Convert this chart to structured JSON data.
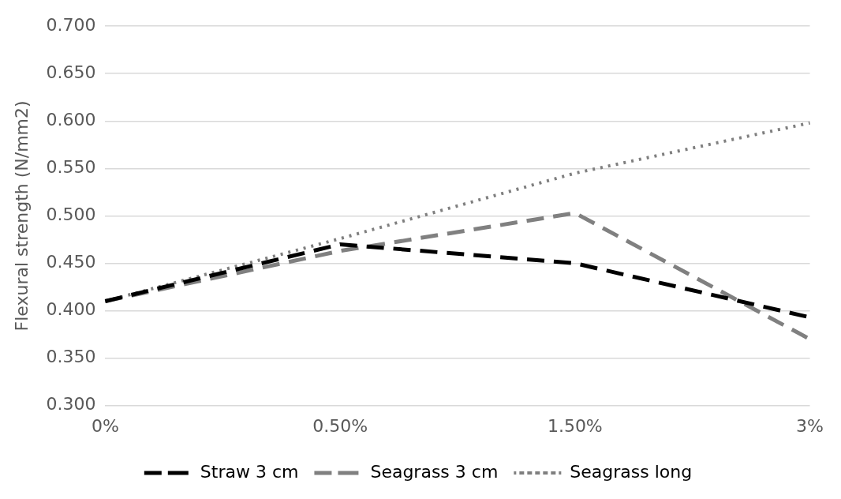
{
  "chart_data": {
    "type": "line",
    "ylabel": "Flexural strength (N/mm2)",
    "categories": [
      "0%",
      "0.50%",
      "1.50%",
      "3%"
    ],
    "series": [
      {
        "name": "Straw 3 cm",
        "color": "#000000",
        "values": [
          0.41,
          0.47,
          0.45,
          0.393
        ],
        "line_style": "dashed"
      },
      {
        "name": "Seagrass 3 cm",
        "color": "#808080",
        "values": [
          0.41,
          0.463,
          0.503,
          0.37
        ],
        "line_style": "dashed"
      },
      {
        "name": "Seagrass long",
        "color": "#7f7f7f",
        "values": [
          0.41,
          0.476,
          0.545,
          0.598
        ],
        "line_style": "dotted"
      }
    ],
    "ylim": [
      0.3,
      0.7
    ],
    "yticks": [
      {
        "value": 0.3,
        "label": "0.300"
      },
      {
        "value": 0.35,
        "label": "0.350"
      },
      {
        "value": 0.4,
        "label": "0.400"
      },
      {
        "value": 0.45,
        "label": "0.450"
      },
      {
        "value": 0.5,
        "label": "0.500"
      },
      {
        "value": 0.55,
        "label": "0.550"
      },
      {
        "value": 0.6,
        "label": "0.600"
      },
      {
        "value": 0.65,
        "label": "0.650"
      },
      {
        "value": 0.7,
        "label": "0.700"
      }
    ],
    "grid": "y",
    "legend": "bottom",
    "marker": "none"
  }
}
